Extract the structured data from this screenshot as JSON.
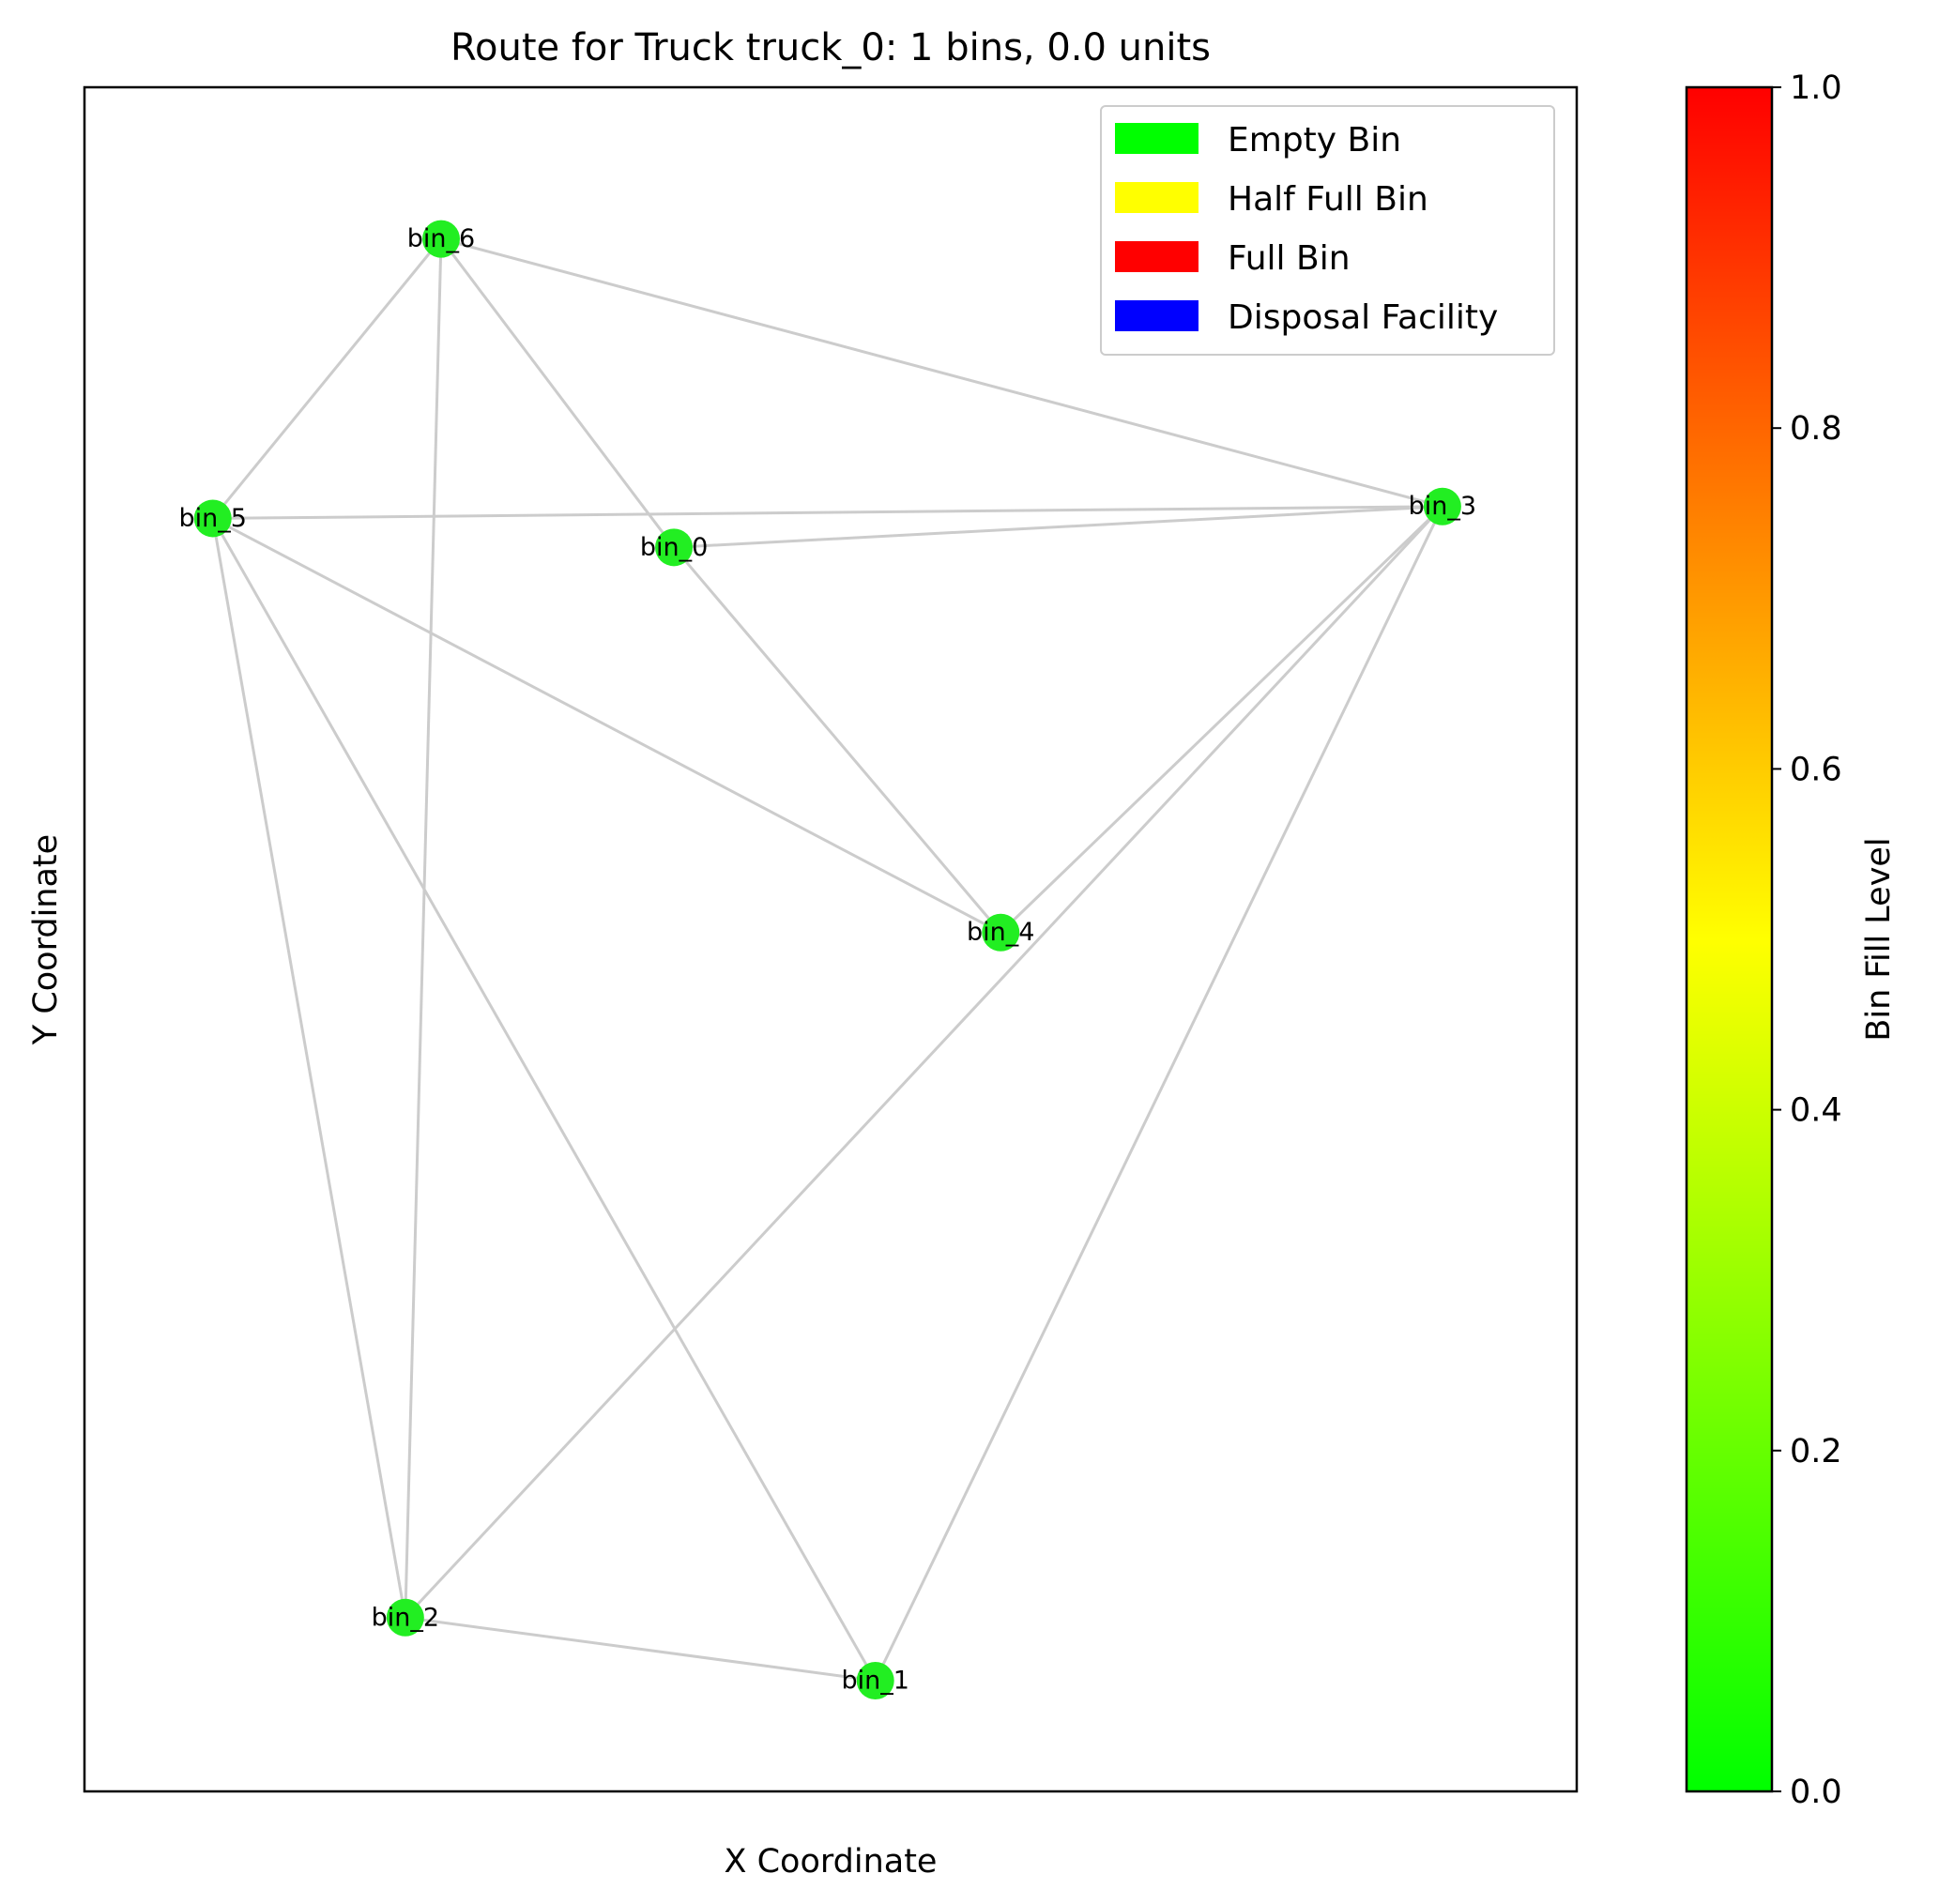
{
  "chart_data": {
    "type": "scatter",
    "title": "Route for Truck truck_0: 1 bins, 0.0 units",
    "xlabel": "X Coordinate",
    "ylabel": "Y Coordinate",
    "grid": false,
    "x_ticks_shown": false,
    "y_ticks_shown": false,
    "legend_position": "top-right",
    "legend": [
      {
        "label": "Empty Bin",
        "color": "#00ff00"
      },
      {
        "label": "Half Full Bin",
        "color": "#ffff00"
      },
      {
        "label": "Full Bin",
        "color": "#ff0000"
      },
      {
        "label": "Disposal Facility",
        "color": "#0000ff"
      }
    ],
    "xlim": [
      0,
      100
    ],
    "ylim": [
      0,
      100
    ],
    "node_color": "#22ee22",
    "edge_color": "#cccccc",
    "nodes": [
      {
        "id": "bin_0",
        "x": 39.5,
        "y": 73.0,
        "fill": 0.0
      },
      {
        "id": "bin_1",
        "x": 53.0,
        "y": 6.5,
        "fill": 0.0
      },
      {
        "id": "bin_2",
        "x": 21.5,
        "y": 10.2,
        "fill": 0.0
      },
      {
        "id": "bin_3",
        "x": 91.0,
        "y": 75.4,
        "fill": 0.0
      },
      {
        "id": "bin_4",
        "x": 61.4,
        "y": 50.4,
        "fill": 0.0
      },
      {
        "id": "bin_5",
        "x": 8.6,
        "y": 74.7,
        "fill": 0.0
      },
      {
        "id": "bin_6",
        "x": 23.9,
        "y": 91.1,
        "fill": 0.0
      }
    ],
    "edges": [
      [
        "bin_6",
        "bin_5"
      ],
      [
        "bin_6",
        "bin_0"
      ],
      [
        "bin_6",
        "bin_3"
      ],
      [
        "bin_6",
        "bin_2"
      ],
      [
        "bin_5",
        "bin_3"
      ],
      [
        "bin_0",
        "bin_3"
      ],
      [
        "bin_0",
        "bin_4"
      ],
      [
        "bin_5",
        "bin_4"
      ],
      [
        "bin_5",
        "bin_2"
      ],
      [
        "bin_5",
        "bin_1"
      ],
      [
        "bin_3",
        "bin_4"
      ],
      [
        "bin_3",
        "bin_2"
      ],
      [
        "bin_3",
        "bin_1"
      ],
      [
        "bin_2",
        "bin_1"
      ]
    ],
    "colorbar": {
      "label": "Bin Fill Level",
      "range": [
        0.0,
        1.0
      ],
      "ticks": [
        "0.0",
        "0.2",
        "0.4",
        "0.6",
        "0.8",
        "1.0"
      ],
      "colors": [
        "#00ff00",
        "#ffff00",
        "#ff0000"
      ]
    }
  }
}
